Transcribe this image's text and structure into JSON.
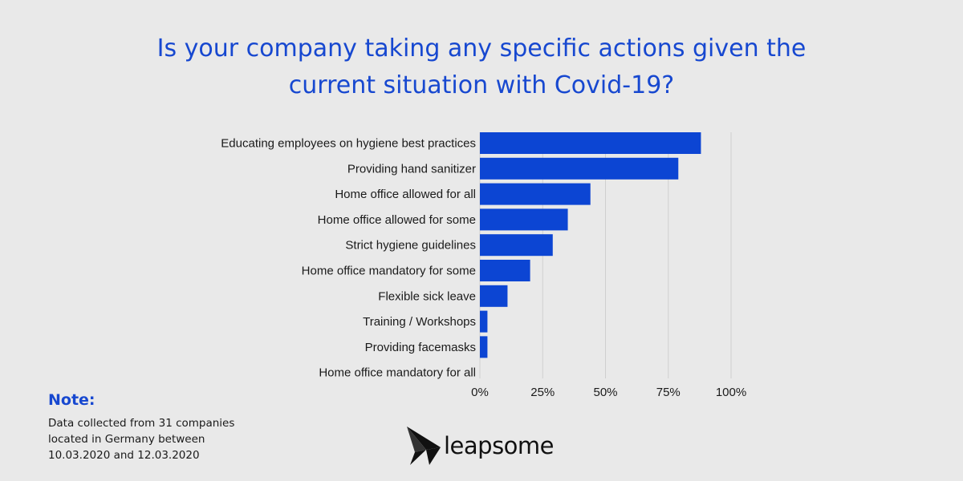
{
  "title_lines": [
    "Is your company taking any specific actions given the",
    "current situation with Covid-19?"
  ],
  "chart_data": {
    "type": "bar",
    "orientation": "horizontal",
    "categories": [
      "Educating employees on hygiene best practices",
      "Providing hand sanitizer",
      "Home office allowed for all",
      "Home office allowed for some",
      "Strict hygiene guidelines",
      "Home office mandatory for some",
      "Flexible sick leave",
      "Training / Workshops",
      "Providing facemasks",
      "Home office mandatory for all"
    ],
    "values": [
      88,
      79,
      44,
      35,
      29,
      20,
      11,
      3,
      3,
      0
    ],
    "xticks": [
      "0%",
      "25%",
      "50%",
      "75%",
      "100%"
    ],
    "xtick_values": [
      0,
      25,
      50,
      75,
      100
    ],
    "xlim": [
      0,
      100
    ],
    "grid": true,
    "bar_color": "#0c45d3",
    "grid_color": "#cfcfcf"
  },
  "note": {
    "heading": "Note:",
    "lines": [
      "Data collected from 31 companies",
      "located in Germany between",
      "10.03.2020 and 12.03.2020"
    ]
  },
  "logo": {
    "text": "leapsome",
    "icon": "leapsome-logo-icon"
  },
  "colors": {
    "accent": "#1748d0",
    "background": "#e9e9e9"
  }
}
